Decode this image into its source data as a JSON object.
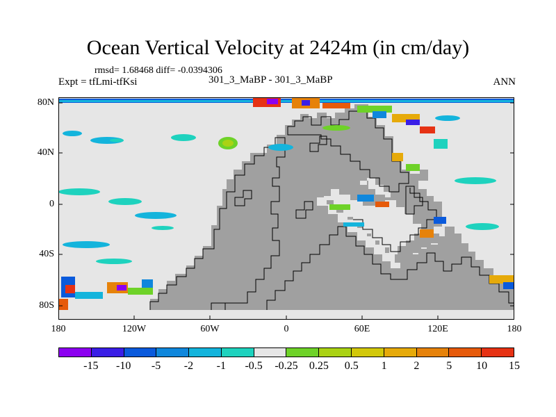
{
  "title": "Ocean Vertical Velocity at 2424m (in cm/day)",
  "stats": "rmsd= 1.68468 diff= -0.0394306",
  "experiment": "Expt = tfLmi-tfKsi",
  "cases": "301_3_MaBP - 301_3_MaBP",
  "season": "ANN",
  "map": {
    "y_ticks": [
      "80N",
      "40N",
      "0",
      "40S",
      "80S"
    ],
    "x_ticks": [
      "180",
      "120W",
      "60W",
      "0",
      "60E",
      "120E",
      "180"
    ],
    "land_color": "#a0a0a0",
    "ocean_color": "#e6e6e6"
  },
  "colorbar": {
    "colors": [
      "#8c00f0",
      "#3a1ee6",
      "#0a5adc",
      "#0f87dc",
      "#14b4dc",
      "#1ed2be",
      "#e6e6e6",
      "#6ed228",
      "#aad214",
      "#d2c80a",
      "#e6aa0a",
      "#e6820a",
      "#e65a0a",
      "#e63214"
    ],
    "labels": [
      "-15",
      "-10",
      "-5",
      "-2",
      "-1",
      "-0.5",
      "-0.25",
      "0.25",
      "0.5",
      "1",
      "2",
      "5",
      "10",
      "15"
    ]
  }
}
